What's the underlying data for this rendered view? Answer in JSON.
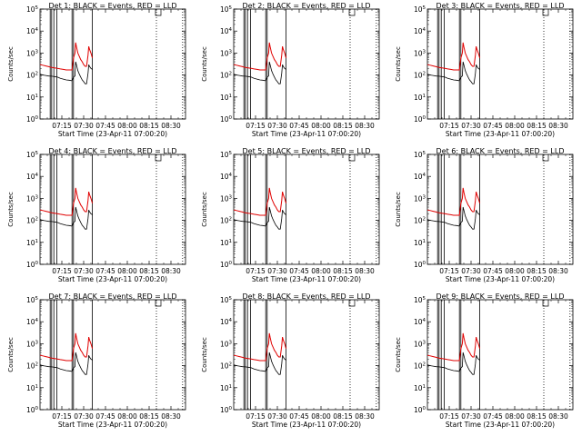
{
  "figure": {
    "ylabel": "Counts/sec",
    "xlabel": "Start Time (23-Apr-11 07:00:20)",
    "colors": {
      "events": "#000000",
      "lld": "#e00000",
      "frame": "#000000",
      "background": "#ffffff"
    }
  },
  "chart_data": [
    {
      "type": "line",
      "title": "Det 1: BLACK = Events, RED = LLD",
      "detector": 1
    },
    {
      "type": "line",
      "title": "Det 2: BLACK = Events, RED = LLD",
      "detector": 2
    },
    {
      "type": "line",
      "title": "Det 3: BLACK = Events, RED = LLD",
      "detector": 3
    },
    {
      "type": "line",
      "title": "Det 4: BLACK = Events, RED = LLD",
      "detector": 4
    },
    {
      "type": "line",
      "title": "Det 5: BLACK = Events, RED = LLD",
      "detector": 5
    },
    {
      "type": "line",
      "title": "Det 6: BLACK = Events, RED = LLD",
      "detector": 6
    },
    {
      "type": "line",
      "title": "Det 7: BLACK = Events, RED = LLD",
      "detector": 7
    },
    {
      "type": "line",
      "title": "Det 8: BLACK = Events, RED = LLD",
      "detector": 8
    },
    {
      "type": "line",
      "title": "Det 9: BLACK = Events, RED = LLD",
      "detector": 9
    }
  ],
  "shared_axes": {
    "x_ticks": [
      "07:15",
      "07:30",
      "07:45",
      "08:00",
      "08:15",
      "08:30"
    ],
    "x_tick_minutes": [
      15,
      30,
      45,
      60,
      75,
      90
    ],
    "xlim_minutes": [
      0,
      100
    ],
    "ylim": [
      1,
      100000
    ],
    "yscale": "log",
    "y_ticks": [
      {
        "base": "10",
        "exp": "0",
        "value": 1
      },
      {
        "base": "10",
        "exp": "1",
        "value": 10
      },
      {
        "base": "10",
        "exp": "2",
        "value": 100
      },
      {
        "base": "10",
        "exp": "3",
        "value": 1000
      },
      {
        "base": "10",
        "exp": "4",
        "value": 10000
      },
      {
        "base": "10",
        "exp": "5",
        "value": 100000
      }
    ],
    "solid_vlines_minutes": [
      7,
      8,
      9.5,
      11.5,
      22,
      23,
      36
    ],
    "dotted_vlines_minutes": [
      80,
      98
    ],
    "events_series": {
      "name": "Events",
      "x_minutes": [
        0,
        2,
        4,
        6,
        8,
        10,
        12,
        14,
        16,
        18,
        20,
        22,
        23,
        24,
        24.5,
        25,
        26,
        27,
        28,
        29,
        30,
        31,
        32,
        33,
        33.5,
        34,
        35,
        36
      ],
      "values": [
        110,
        100,
        95,
        90,
        88,
        85,
        80,
        70,
        65,
        60,
        58,
        55,
        80,
        90,
        400,
        300,
        160,
        110,
        80,
        60,
        50,
        40,
        40,
        120,
        300,
        250,
        200,
        180
      ]
    },
    "lld_series": {
      "name": "LLD",
      "x_minutes": [
        -6,
        -3,
        0,
        2,
        4,
        6,
        8,
        10,
        12,
        14,
        16,
        18,
        20,
        22,
        23,
        24,
        24.5,
        25,
        26,
        27,
        28,
        29,
        30,
        31,
        32,
        33,
        33.5,
        34,
        35,
        36
      ],
      "values": [
        200,
        250,
        300,
        280,
        260,
        240,
        220,
        210,
        200,
        190,
        180,
        170,
        170,
        170,
        600,
        1000,
        3000,
        2000,
        1000,
        700,
        500,
        400,
        300,
        250,
        250,
        800,
        2000,
        1500,
        1000,
        600
      ]
    }
  }
}
